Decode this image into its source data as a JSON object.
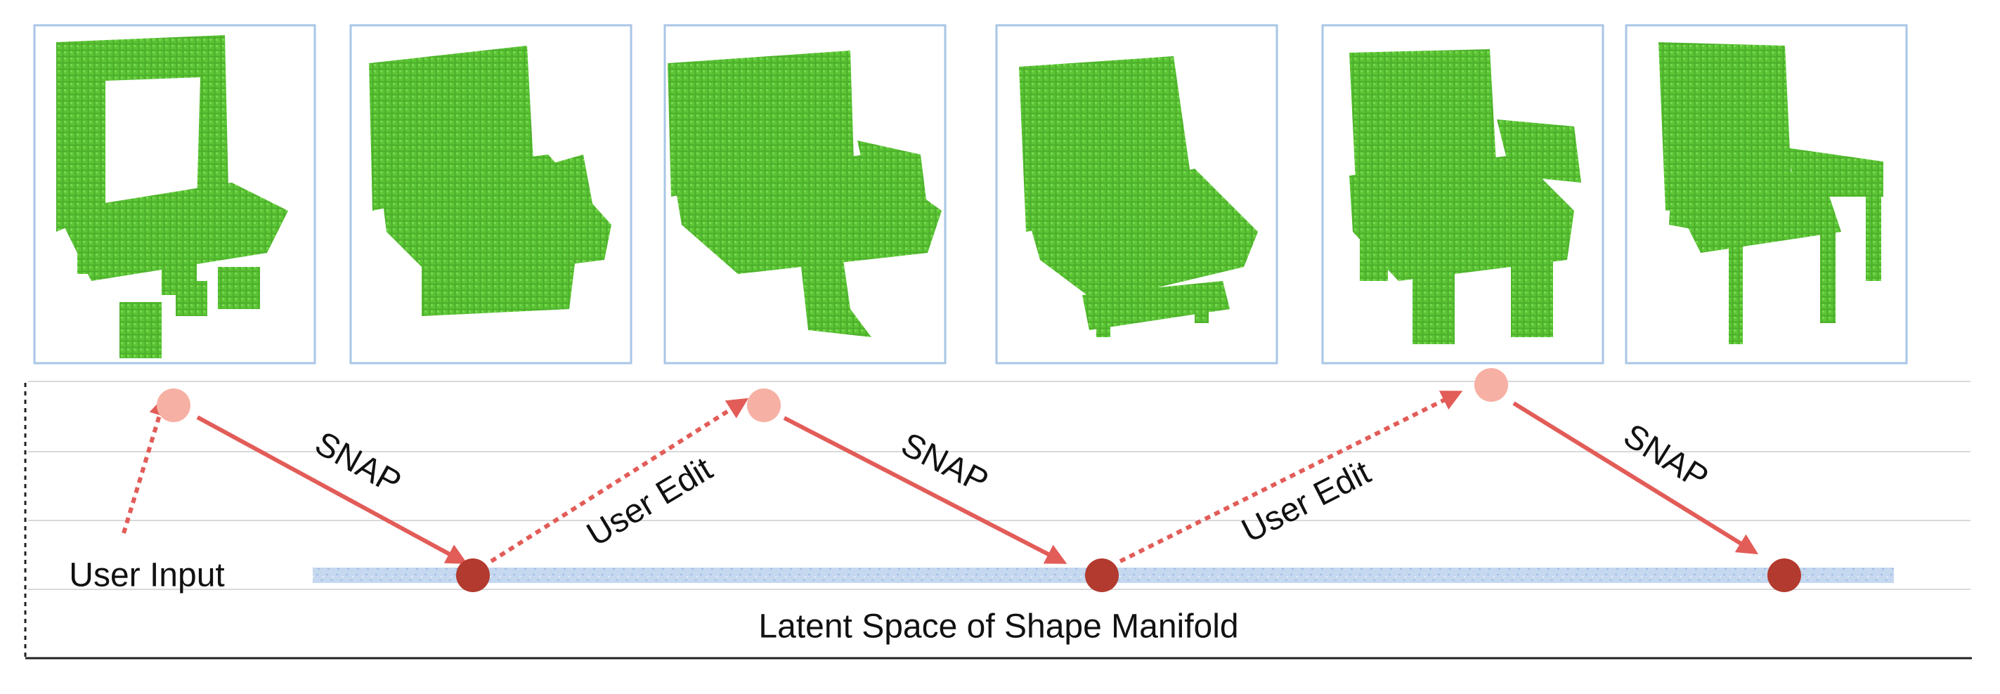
{
  "labels": {
    "snap_1": "SNAP",
    "user_edit_1": "User Edit",
    "snap_2": "SNAP",
    "user_edit_2": "User Edit",
    "snap_3": "SNAP",
    "user_input": "User Input",
    "manifold": "Latent Space of Shape Manifold"
  }
}
